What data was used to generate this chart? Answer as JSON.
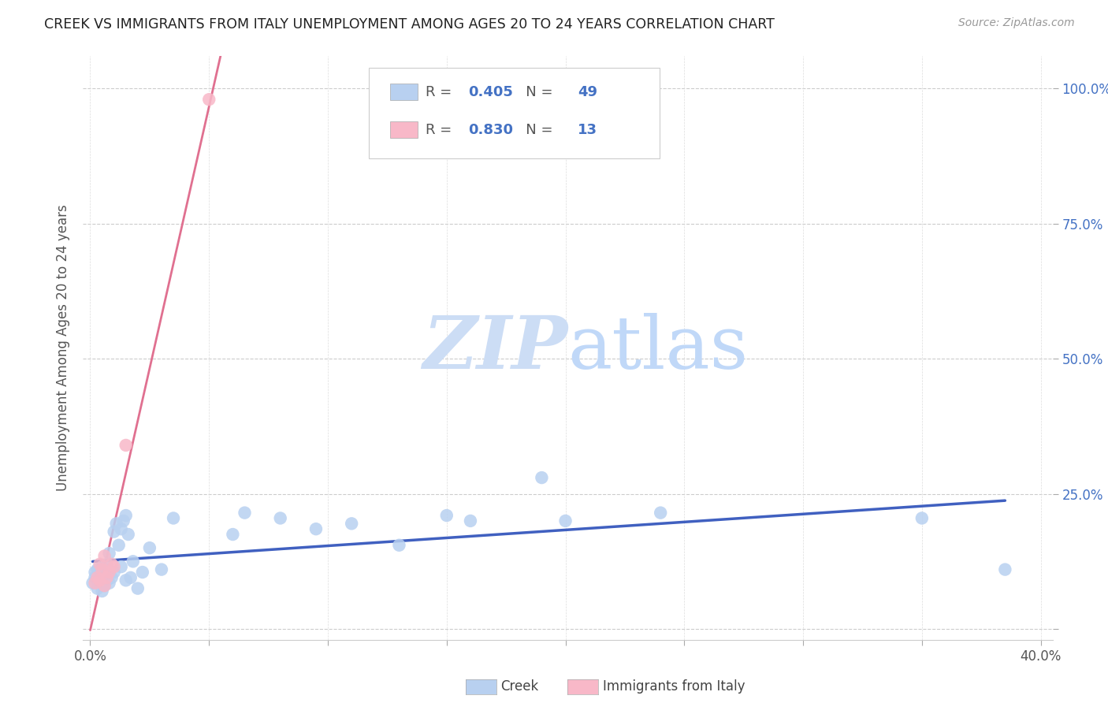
{
  "title": "CREEK VS IMMIGRANTS FROM ITALY UNEMPLOYMENT AMONG AGES 20 TO 24 YEARS CORRELATION CHART",
  "source": "Source: ZipAtlas.com",
  "ylabel": "Unemployment Among Ages 20 to 24 years",
  "xlim_min": -0.003,
  "xlim_max": 0.405,
  "ylim_min": -0.02,
  "ylim_max": 1.06,
  "xtick_positions": [
    0.0,
    0.05,
    0.1,
    0.15,
    0.2,
    0.25,
    0.3,
    0.35,
    0.4
  ],
  "ytick_positions": [
    0.0,
    0.25,
    0.5,
    0.75,
    1.0
  ],
  "yticklabels": [
    "",
    "25.0%",
    "50.0%",
    "75.0%",
    "100.0%"
  ],
  "creek_R": "0.405",
  "creek_N": "49",
  "italy_R": "0.830",
  "italy_N": "13",
  "creek_dot_color": "#b8d0f0",
  "italy_dot_color": "#f8b8c8",
  "creek_line_color": "#4060c0",
  "italy_line_color": "#e07090",
  "watermark_zip_color": "#ccddf5",
  "watermark_atlas_color": "#c0d8f8",
  "legend_box_color": "#e8e8e8",
  "creek_x": [
    0.001,
    0.002,
    0.002,
    0.003,
    0.003,
    0.003,
    0.004,
    0.004,
    0.005,
    0.005,
    0.005,
    0.006,
    0.006,
    0.007,
    0.007,
    0.007,
    0.008,
    0.008,
    0.009,
    0.01,
    0.01,
    0.011,
    0.012,
    0.013,
    0.013,
    0.014,
    0.015,
    0.015,
    0.016,
    0.017,
    0.018,
    0.02,
    0.022,
    0.025,
    0.03,
    0.035,
    0.06,
    0.065,
    0.08,
    0.095,
    0.11,
    0.13,
    0.15,
    0.16,
    0.19,
    0.2,
    0.24,
    0.35,
    0.385
  ],
  "creek_y": [
    0.085,
    0.095,
    0.105,
    0.075,
    0.09,
    0.11,
    0.085,
    0.1,
    0.07,
    0.095,
    0.115,
    0.08,
    0.105,
    0.09,
    0.12,
    0.1,
    0.085,
    0.14,
    0.095,
    0.105,
    0.18,
    0.195,
    0.155,
    0.185,
    0.115,
    0.2,
    0.21,
    0.09,
    0.175,
    0.095,
    0.125,
    0.075,
    0.105,
    0.15,
    0.11,
    0.205,
    0.175,
    0.215,
    0.205,
    0.185,
    0.195,
    0.155,
    0.21,
    0.2,
    0.28,
    0.2,
    0.215,
    0.205,
    0.11
  ],
  "italy_x": [
    0.002,
    0.003,
    0.004,
    0.004,
    0.005,
    0.006,
    0.006,
    0.007,
    0.008,
    0.009,
    0.01,
    0.015,
    0.05
  ],
  "italy_y": [
    0.085,
    0.095,
    0.09,
    0.12,
    0.11,
    0.08,
    0.135,
    0.095,
    0.105,
    0.12,
    0.115,
    0.34,
    0.98
  ]
}
